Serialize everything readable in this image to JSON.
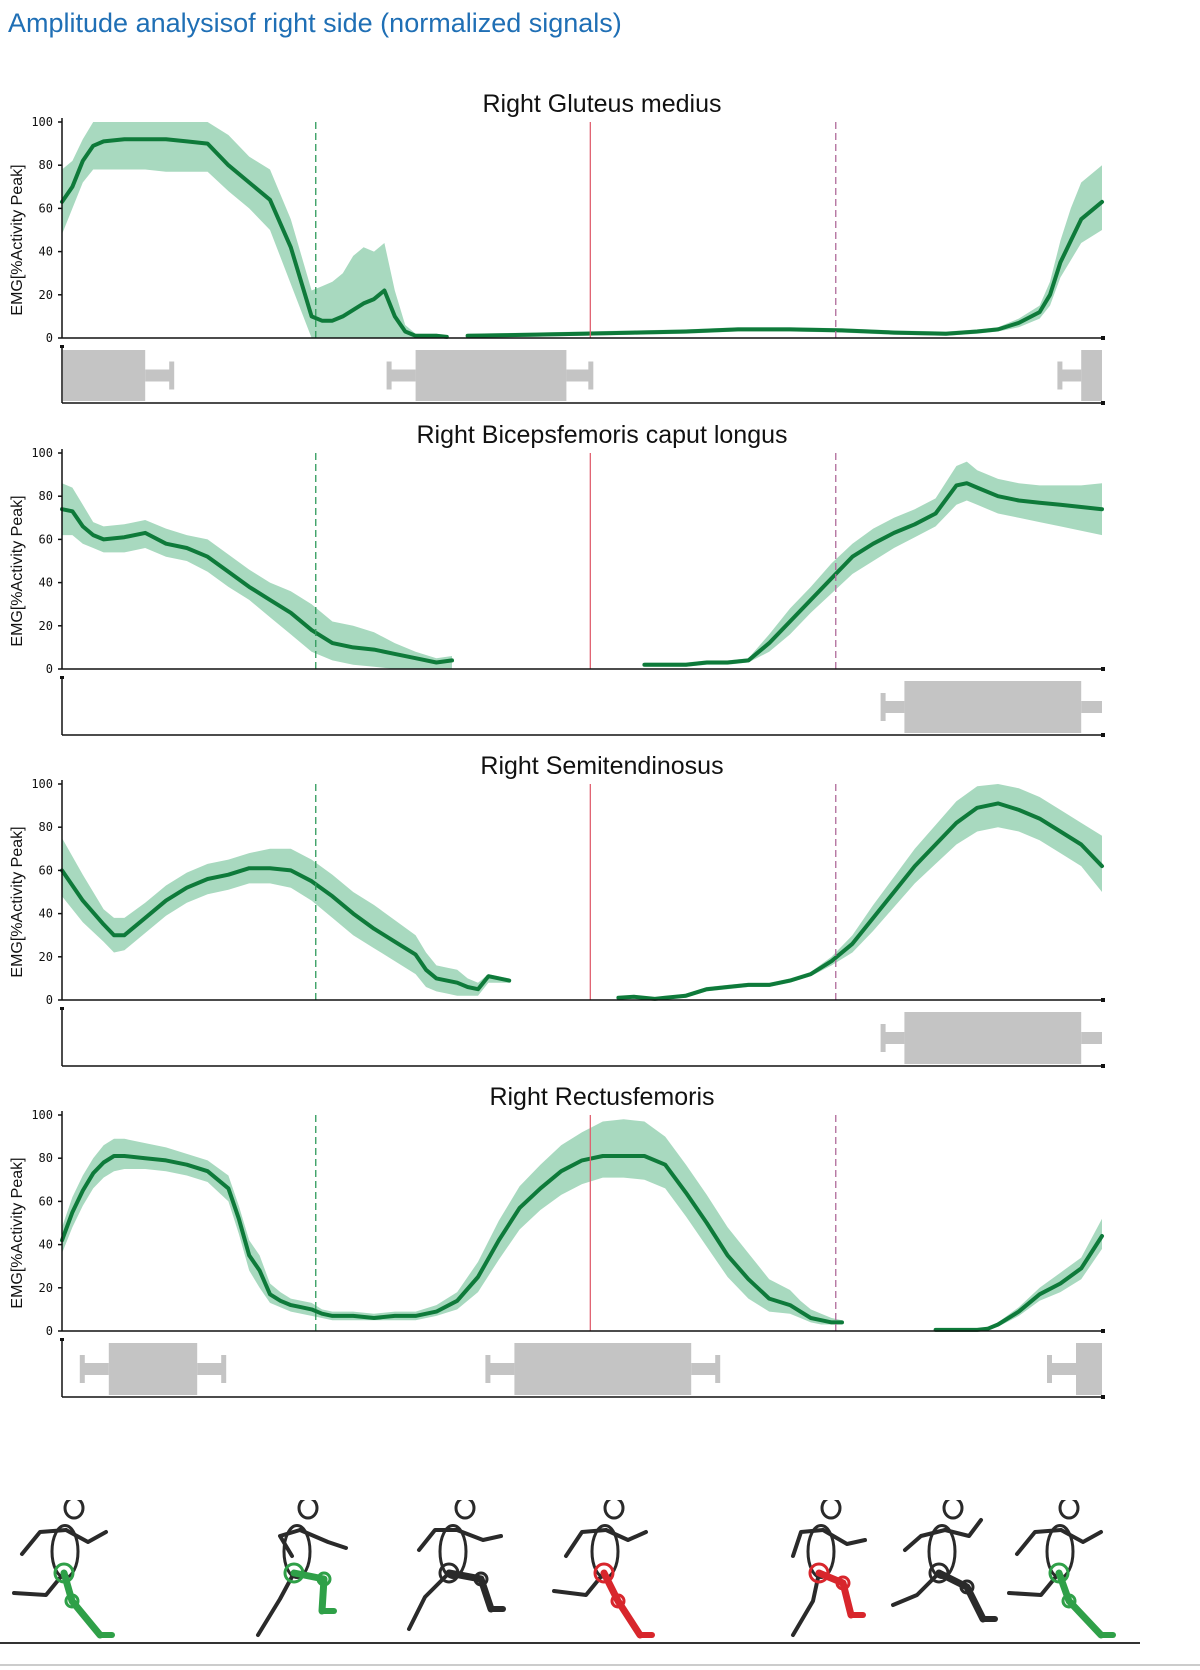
{
  "page": {
    "title": "Amplitude analysisof right side (normalized signals)"
  },
  "colors": {
    "line": "#0e7a3a",
    "band": "#a8d9bf",
    "activation": "#c4c4c4",
    "marker_green": "#2e9a5a",
    "marker_red": "#e06070",
    "marker_purple": "#b06a9a",
    "figure_green": "#2fa048",
    "figure_red": "#d8262c",
    "title_blue": "#1f6fb5"
  },
  "chart_data": [
    {
      "type": "line",
      "title": "Right Gluteus medius",
      "ylabel": "EMG[%Activity  Peak]",
      "xlim": [
        0,
        100
      ],
      "ylim": [
        0,
        100
      ],
      "yticks": [
        "0",
        "20",
        "40",
        "60",
        "80",
        "100"
      ],
      "markers": [
        24.4,
        50.8,
        74.4
      ],
      "segments": [
        {
          "x": [
            0,
            1,
            2,
            3,
            4,
            6,
            8,
            10,
            12,
            14,
            16,
            18,
            20,
            22,
            24,
            25,
            26,
            27,
            28,
            29,
            30,
            31,
            32,
            33,
            34,
            35,
            36,
            37
          ],
          "y": [
            63,
            70,
            82,
            89,
            91,
            92,
            92,
            92,
            91,
            90,
            80,
            72,
            64,
            42,
            10,
            8,
            8,
            10,
            13,
            16,
            18,
            22,
            10,
            3,
            1,
            1,
            1,
            0.5
          ],
          "lower": [
            48,
            60,
            72,
            78,
            78,
            78,
            78,
            77,
            77,
            77,
            68,
            60,
            50,
            25,
            0,
            0,
            0,
            0,
            0,
            0,
            0,
            0,
            0,
            0,
            0,
            0,
            0,
            0
          ],
          "upper": [
            78,
            82,
            92,
            100,
            100,
            100,
            100,
            100,
            100,
            100,
            94,
            84,
            78,
            55,
            22,
            24,
            26,
            30,
            38,
            42,
            40,
            44,
            22,
            6,
            2,
            2,
            2,
            1
          ]
        },
        {
          "x": [
            39,
            45,
            50,
            55,
            60,
            65,
            70,
            75,
            80,
            85,
            88,
            90,
            92,
            94,
            95,
            96,
            97,
            98,
            100
          ],
          "y": [
            1,
            1.5,
            2,
            2.5,
            3,
            4,
            4,
            3.5,
            2.5,
            2,
            3,
            4,
            7,
            12,
            20,
            35,
            45,
            55,
            63
          ],
          "lower": [
            0,
            0.5,
            1,
            1.5,
            2,
            3,
            3,
            2.5,
            1.5,
            1,
            2,
            3,
            5,
            9,
            15,
            28,
            36,
            44,
            50
          ],
          "upper": [
            2,
            2.5,
            3,
            3.5,
            4,
            5,
            5,
            4.5,
            3.5,
            3,
            4,
            5,
            9,
            15,
            26,
            45,
            60,
            72,
            80
          ]
        }
      ],
      "activations": [
        [
          -5,
          8,
          10.5
        ],
        [
          31.5,
          34,
          48.5,
          50.8
        ],
        [
          96,
          98,
          102
        ]
      ]
    },
    {
      "type": "line",
      "title": "Right Bicepsfemoris caput longus",
      "ylabel": "EMG[%Activity  Peak]",
      "xlim": [
        0,
        100
      ],
      "ylim": [
        0,
        100
      ],
      "yticks": [
        "0",
        "20",
        "40",
        "60",
        "80",
        "100"
      ],
      "markers": [
        24.4,
        50.8,
        74.4
      ],
      "segments": [
        {
          "x": [
            0,
            1,
            2,
            3,
            4,
            6,
            8,
            10,
            12,
            14,
            16,
            18,
            20,
            22,
            24,
            26,
            28,
            30,
            32,
            34,
            36,
            37.5
          ],
          "y": [
            74,
            73,
            66,
            62,
            60,
            61,
            63,
            58,
            56,
            52,
            45,
            38,
            32,
            26,
            18,
            12,
            10,
            9,
            7,
            5,
            3,
            4
          ],
          "lower": [
            62,
            62,
            58,
            56,
            54,
            54,
            56,
            52,
            50,
            45,
            38,
            32,
            24,
            16,
            8,
            4,
            2,
            1,
            0,
            0,
            0,
            0
          ],
          "upper": [
            86,
            84,
            76,
            68,
            66,
            67,
            69,
            65,
            62,
            60,
            53,
            46,
            40,
            36,
            30,
            22,
            20,
            17,
            12,
            8,
            5,
            6
          ]
        },
        {
          "x": [
            56,
            58,
            60,
            62,
            64,
            66,
            68,
            70,
            72,
            74,
            76,
            78,
            80,
            82,
            84,
            86,
            87,
            88,
            90,
            92,
            94,
            96,
            98,
            100
          ],
          "y": [
            2,
            2,
            2,
            3,
            3,
            4,
            12,
            22,
            32,
            42,
            52,
            58,
            63,
            67,
            72,
            85,
            86,
            84,
            80,
            78,
            77,
            76,
            75,
            74
          ],
          "lower": [
            1,
            1,
            1,
            2,
            2,
            3,
            8,
            16,
            26,
            35,
            44,
            50,
            56,
            61,
            66,
            76,
            78,
            76,
            72,
            70,
            68,
            66,
            64,
            62
          ],
          "upper": [
            3,
            3,
            3,
            4,
            4,
            5,
            16,
            28,
            38,
            49,
            58,
            65,
            70,
            74,
            79,
            94,
            96,
            92,
            88,
            86,
            85,
            85,
            85,
            86
          ]
        }
      ],
      "activations": [
        [
          79,
          81,
          98,
          104
        ]
      ]
    },
    {
      "type": "line",
      "title": "Right Semitendinosus",
      "ylabel": "EMG[%Activity  Peak]",
      "xlim": [
        0,
        100
      ],
      "ylim": [
        0,
        100
      ],
      "yticks": [
        "0",
        "20",
        "40",
        "60",
        "80",
        "100"
      ],
      "markers": [
        24.4,
        50.8,
        74.4
      ],
      "segments": [
        {
          "x": [
            0,
            2,
            4,
            5,
            6,
            8,
            10,
            12,
            14,
            16,
            18,
            20,
            22,
            24,
            26,
            28,
            30,
            32,
            34,
            35,
            36,
            37,
            38,
            39,
            40,
            41,
            43
          ],
          "y": [
            60,
            46,
            35,
            30,
            30,
            38,
            46,
            52,
            56,
            58,
            61,
            61,
            60,
            55,
            48,
            40,
            33,
            27,
            21,
            14,
            10,
            9,
            8,
            6,
            5,
            11,
            9
          ],
          "lower": [
            48,
            36,
            27,
            22,
            23,
            31,
            39,
            45,
            49,
            51,
            54,
            54,
            52,
            46,
            38,
            30,
            24,
            18,
            12,
            6,
            4,
            3,
            2,
            2,
            2,
            8,
            8
          ],
          "upper": [
            75,
            58,
            42,
            38,
            38,
            45,
            53,
            59,
            63,
            65,
            68,
            70,
            70,
            65,
            58,
            50,
            44,
            37,
            30,
            22,
            16,
            15,
            14,
            10,
            8,
            12,
            10
          ]
        },
        {
          "x": [
            53.5,
            55,
            57,
            58,
            60,
            62,
            64,
            66,
            68,
            70,
            72,
            74,
            76,
            78,
            80,
            82,
            84,
            86,
            88,
            90,
            92,
            94,
            96,
            98,
            100
          ],
          "y": [
            1,
            1.5,
            0.5,
            1,
            2,
            5,
            6,
            7,
            7,
            9,
            12,
            18,
            26,
            38,
            50,
            62,
            72,
            82,
            89,
            91,
            88,
            84,
            78,
            72,
            62
          ],
          "lower": [
            0.5,
            1,
            0,
            0.5,
            1,
            4,
            5,
            6,
            6,
            8,
            11,
            16,
            22,
            32,
            43,
            54,
            63,
            72,
            78,
            80,
            78,
            74,
            68,
            62,
            50
          ],
          "upper": [
            1.5,
            2,
            1,
            1.5,
            3,
            6,
            7,
            8,
            8,
            10,
            13,
            20,
            30,
            44,
            57,
            70,
            81,
            92,
            99,
            100,
            98,
            94,
            88,
            82,
            76
          ]
        }
      ],
      "activations": [
        [
          79,
          81,
          98,
          104
        ]
      ]
    },
    {
      "type": "line",
      "title": "Right Rectusfemoris",
      "ylabel": "EMG[%Activity  Peak]",
      "xlim": [
        0,
        100
      ],
      "ylim": [
        0,
        100
      ],
      "yticks": [
        "0",
        "20",
        "40",
        "60",
        "80",
        "100"
      ],
      "markers": [
        24.4,
        50.8,
        74.4
      ],
      "segments": [
        {
          "x": [
            0,
            1,
            2,
            3,
            4,
            5,
            6,
            8,
            10,
            12,
            14,
            16,
            17,
            18,
            19,
            20,
            21,
            22,
            23,
            24,
            25,
            26,
            28,
            30,
            32,
            34,
            36,
            38,
            40,
            42,
            44,
            46,
            48,
            50,
            52,
            54,
            56,
            58,
            60,
            62,
            64,
            66,
            68,
            70,
            71,
            72,
            73,
            74,
            75
          ],
          "y": [
            42,
            55,
            65,
            73,
            78,
            81,
            81,
            80,
            79,
            77,
            74,
            66,
            52,
            35,
            28,
            17,
            14,
            12,
            11,
            10,
            8,
            7,
            7,
            6,
            7,
            7,
            9,
            14,
            25,
            42,
            57,
            66,
            74,
            79,
            81,
            81,
            81,
            77,
            64,
            50,
            35,
            24,
            15,
            12,
            9,
            6,
            5,
            4,
            4
          ],
          "lower": [
            36,
            48,
            58,
            66,
            71,
            74,
            75,
            75,
            74,
            72,
            69,
            60,
            45,
            28,
            20,
            13,
            11,
            9,
            8,
            7,
            6,
            5,
            5,
            5,
            5,
            5,
            7,
            10,
            18,
            33,
            47,
            56,
            63,
            68,
            71,
            71,
            70,
            66,
            53,
            39,
            25,
            15,
            9,
            8,
            6,
            4,
            3,
            3,
            3
          ],
          "upper": [
            48,
            62,
            72,
            80,
            86,
            89,
            89,
            87,
            85,
            82,
            79,
            72,
            58,
            42,
            35,
            22,
            18,
            15,
            14,
            13,
            10,
            9,
            9,
            8,
            9,
            9,
            12,
            18,
            32,
            51,
            67,
            77,
            86,
            92,
            97,
            98,
            97,
            90,
            77,
            63,
            48,
            36,
            24,
            19,
            14,
            10,
            8,
            6,
            5
          ]
        },
        {
          "x": [
            84,
            86,
            88,
            89,
            90,
            92,
            94,
            96,
            98,
            100
          ],
          "y": [
            0.5,
            0.5,
            0.5,
            1,
            3,
            9,
            17,
            22,
            29,
            44
          ],
          "lower": [
            0.3,
            0.3,
            0.3,
            0.6,
            2,
            7,
            14,
            18,
            24,
            38
          ],
          "upper": [
            0.7,
            0.7,
            0.7,
            1.5,
            4,
            11,
            20,
            27,
            34,
            52
          ]
        }
      ],
      "activations": [
        [
          2,
          4.5,
          13,
          15.5
        ],
        [
          41,
          43.5,
          60.5,
          63
        ],
        [
          95,
          97.5,
          102
        ]
      ]
    }
  ],
  "figures": [
    {
      "name": "runner-figure-1",
      "highlight": "green"
    },
    {
      "name": "runner-figure-2",
      "highlight": "green"
    },
    {
      "name": "runner-figure-3",
      "highlight": "none"
    },
    {
      "name": "runner-figure-4",
      "highlight": "red"
    },
    {
      "name": "runner-figure-5",
      "highlight": "red"
    },
    {
      "name": "runner-figure-6",
      "highlight": "none"
    },
    {
      "name": "runner-figure-7",
      "highlight": "green"
    }
  ]
}
